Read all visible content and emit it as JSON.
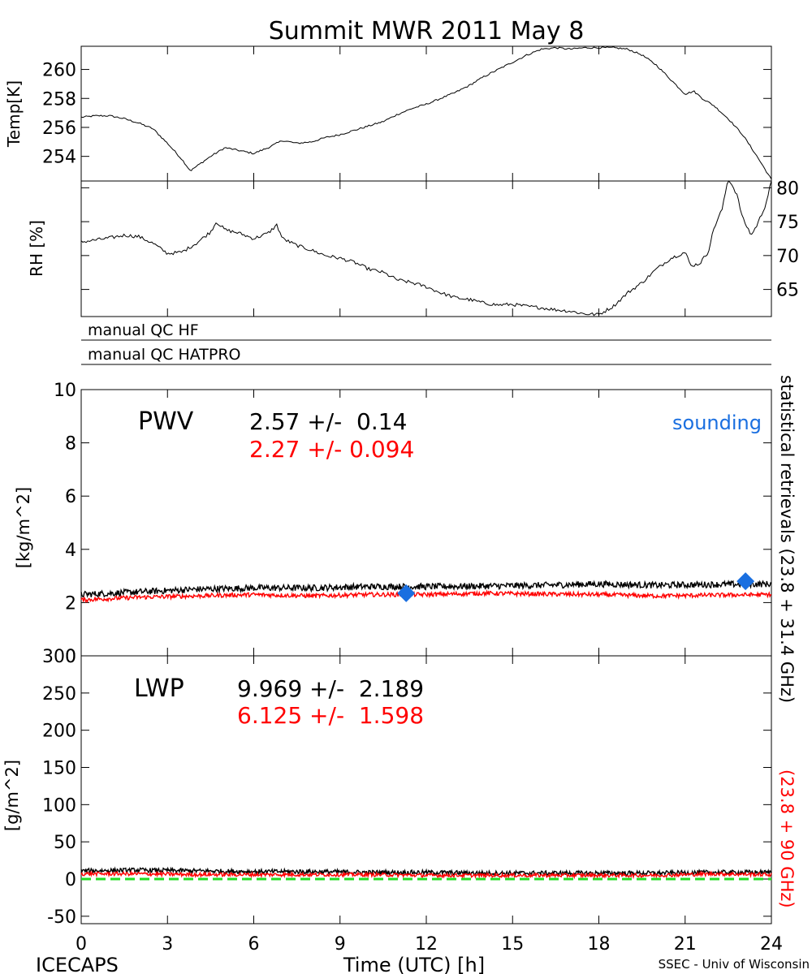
{
  "title": "Summit MWR 2011 May  8",
  "footer": {
    "left": "ICECAPS",
    "center": "Time (UTC) [h]",
    "right": "SSEC - Univ of Wisconsin"
  },
  "colors": {
    "black": "#000000",
    "red": "#ff0000",
    "blue": "#1a6fe0",
    "green": "#22dd22"
  },
  "qc_labels": [
    "manual QC HF",
    "manual QC HATPRO"
  ],
  "side_label": {
    "black": "statistical retrievals (23.8 + 31.4 GHz)",
    "red": "(23.8 + 90 GHz)"
  },
  "chart_data": [
    {
      "id": "temp",
      "type": "line",
      "ylabel": "Temp[K]",
      "xlim": [
        0,
        24
      ],
      "ylim": [
        252.3,
        261.6
      ],
      "yticks": [
        254,
        256,
        258,
        260
      ],
      "series": [
        {
          "color": "#000000",
          "x": [
            0,
            0.5,
            1,
            1.5,
            2,
            2.5,
            3,
            3.5,
            3.8,
            4,
            4.5,
            5,
            5.5,
            6,
            6.5,
            7,
            7.5,
            8,
            8.5,
            9,
            9.5,
            10,
            10.5,
            11,
            11.5,
            12,
            12.5,
            13,
            13.5,
            14,
            14.5,
            15,
            15.5,
            16,
            16.5,
            17,
            17.5,
            18,
            18.5,
            19,
            19.5,
            20,
            20.5,
            21,
            21.3,
            21.6,
            22,
            22.5,
            23,
            23.5,
            24
          ],
          "y": [
            256.7,
            256.8,
            256.8,
            256.6,
            256.3,
            255.9,
            254.9,
            253.8,
            253.0,
            253.3,
            254.0,
            254.6,
            254.4,
            254.2,
            254.6,
            255.1,
            254.9,
            255.0,
            255.3,
            255.5,
            255.8,
            256.1,
            256.4,
            256.9,
            257.3,
            257.6,
            258.0,
            258.4,
            258.9,
            259.5,
            260.0,
            260.5,
            261.0,
            261.4,
            261.5,
            261.4,
            261.5,
            261.5,
            261.5,
            261.4,
            261.0,
            260.3,
            259.3,
            258.3,
            258.5,
            258.0,
            257.5,
            256.6,
            255.5,
            254.0,
            252.4
          ]
        }
      ]
    },
    {
      "id": "rh",
      "type": "line",
      "ylabel": "RH [%]",
      "xlim": [
        0,
        24
      ],
      "ylim": [
        61,
        81
      ],
      "yticks": [
        65,
        70,
        75,
        80
      ],
      "series": [
        {
          "color": "#000000",
          "x": [
            0,
            0.5,
            1,
            1.5,
            2,
            2.5,
            3,
            3.5,
            4,
            4.5,
            4.7,
            5,
            5.5,
            6,
            6.5,
            6.8,
            7,
            7.5,
            8,
            8.5,
            9,
            9.5,
            10,
            10.5,
            11,
            11.5,
            12,
            12.5,
            13,
            13.5,
            14,
            14.5,
            15,
            15.5,
            16,
            16.5,
            17,
            17.5,
            18,
            18.5,
            19,
            19.5,
            20,
            20.5,
            21,
            21.2,
            21.5,
            21.8,
            22,
            22.3,
            22.5,
            22.8,
            23,
            23.3,
            23.5,
            23.8,
            24
          ],
          "y": [
            72.0,
            72.3,
            72.6,
            73.0,
            72.8,
            71.8,
            70.3,
            70.5,
            71.8,
            73.5,
            75.0,
            73.8,
            73.3,
            72.5,
            73.3,
            74.5,
            72.5,
            71.5,
            70.8,
            70.0,
            69.6,
            69.0,
            68.0,
            67.5,
            66.4,
            66.0,
            65.4,
            64.5,
            63.8,
            63.5,
            63.0,
            62.7,
            62.8,
            62.5,
            62.3,
            62.0,
            61.8,
            61.4,
            61.3,
            62.5,
            64.5,
            66.0,
            68.0,
            69.6,
            70.5,
            68.5,
            68.8,
            70.5,
            74.0,
            77.0,
            81.5,
            79.0,
            75.5,
            73.0,
            74.5,
            77.5,
            81.0
          ]
        }
      ]
    },
    {
      "id": "pwv",
      "type": "line",
      "ylabel": "[kg/m^2]",
      "name": "PWV",
      "xlim": [
        0,
        24
      ],
      "ylim": [
        0,
        10
      ],
      "yticks": [
        0,
        2,
        4,
        6,
        8,
        10
      ],
      "stats": [
        {
          "text": "2.57 +/-  0.14",
          "color": "#000000"
        },
        {
          "text": "2.27 +/- 0.094",
          "color": "#ff0000"
        }
      ],
      "legend": "sounding",
      "series": [
        {
          "color": "#000000",
          "x": [
            0,
            2,
            4,
            6,
            8,
            10,
            12,
            14,
            16,
            18,
            20,
            22,
            24
          ],
          "y": [
            2.3,
            2.4,
            2.5,
            2.55,
            2.55,
            2.6,
            2.6,
            2.62,
            2.65,
            2.7,
            2.65,
            2.68,
            2.7
          ],
          "noise": 0.12
        },
        {
          "color": "#ff0000",
          "x": [
            0,
            2,
            4,
            6,
            8,
            10,
            12,
            14,
            16,
            18,
            20,
            22,
            24
          ],
          "y": [
            2.1,
            2.2,
            2.25,
            2.3,
            2.25,
            2.3,
            2.3,
            2.35,
            2.32,
            2.3,
            2.25,
            2.28,
            2.3
          ],
          "noise": 0.08
        }
      ],
      "points": [
        {
          "x": 11.3,
          "y": 2.35,
          "color": "#1a6fe0"
        },
        {
          "x": 23.1,
          "y": 2.8,
          "color": "#1a6fe0"
        }
      ]
    },
    {
      "id": "lwp",
      "type": "line",
      "ylabel": "[g/m^2]",
      "name": "LWP",
      "xlabel": "Time (UTC) [h]",
      "xlim": [
        0,
        24
      ],
      "ylim": [
        -60,
        300
      ],
      "yticks": [
        -50,
        0,
        50,
        100,
        150,
        200,
        250,
        300
      ],
      "xticks": [
        0,
        3,
        6,
        9,
        12,
        15,
        18,
        21,
        24
      ],
      "stats": [
        {
          "text": "9.969 +/-  2.189",
          "color": "#000000"
        },
        {
          "text": "6.125 +/-  1.598",
          "color": "#ff0000"
        }
      ],
      "series": [
        {
          "color": "#000000",
          "x": [
            0,
            2,
            4,
            6,
            8,
            10,
            12,
            14,
            16,
            18,
            20,
            22,
            24
          ],
          "y": [
            11,
            12,
            11,
            10,
            10,
            9,
            9,
            8,
            8,
            8,
            8,
            9,
            9
          ],
          "noise": 3
        },
        {
          "color": "#ff0000",
          "x": [
            0,
            2,
            4,
            6,
            8,
            10,
            12,
            14,
            16,
            18,
            20,
            22,
            24
          ],
          "y": [
            7,
            7,
            6,
            6,
            6,
            6,
            5,
            5,
            5,
            5,
            5,
            7,
            6
          ],
          "noise": 2.5
        }
      ],
      "reference_line": {
        "y": 0,
        "color": "#22dd22",
        "style": "dashed"
      }
    }
  ]
}
